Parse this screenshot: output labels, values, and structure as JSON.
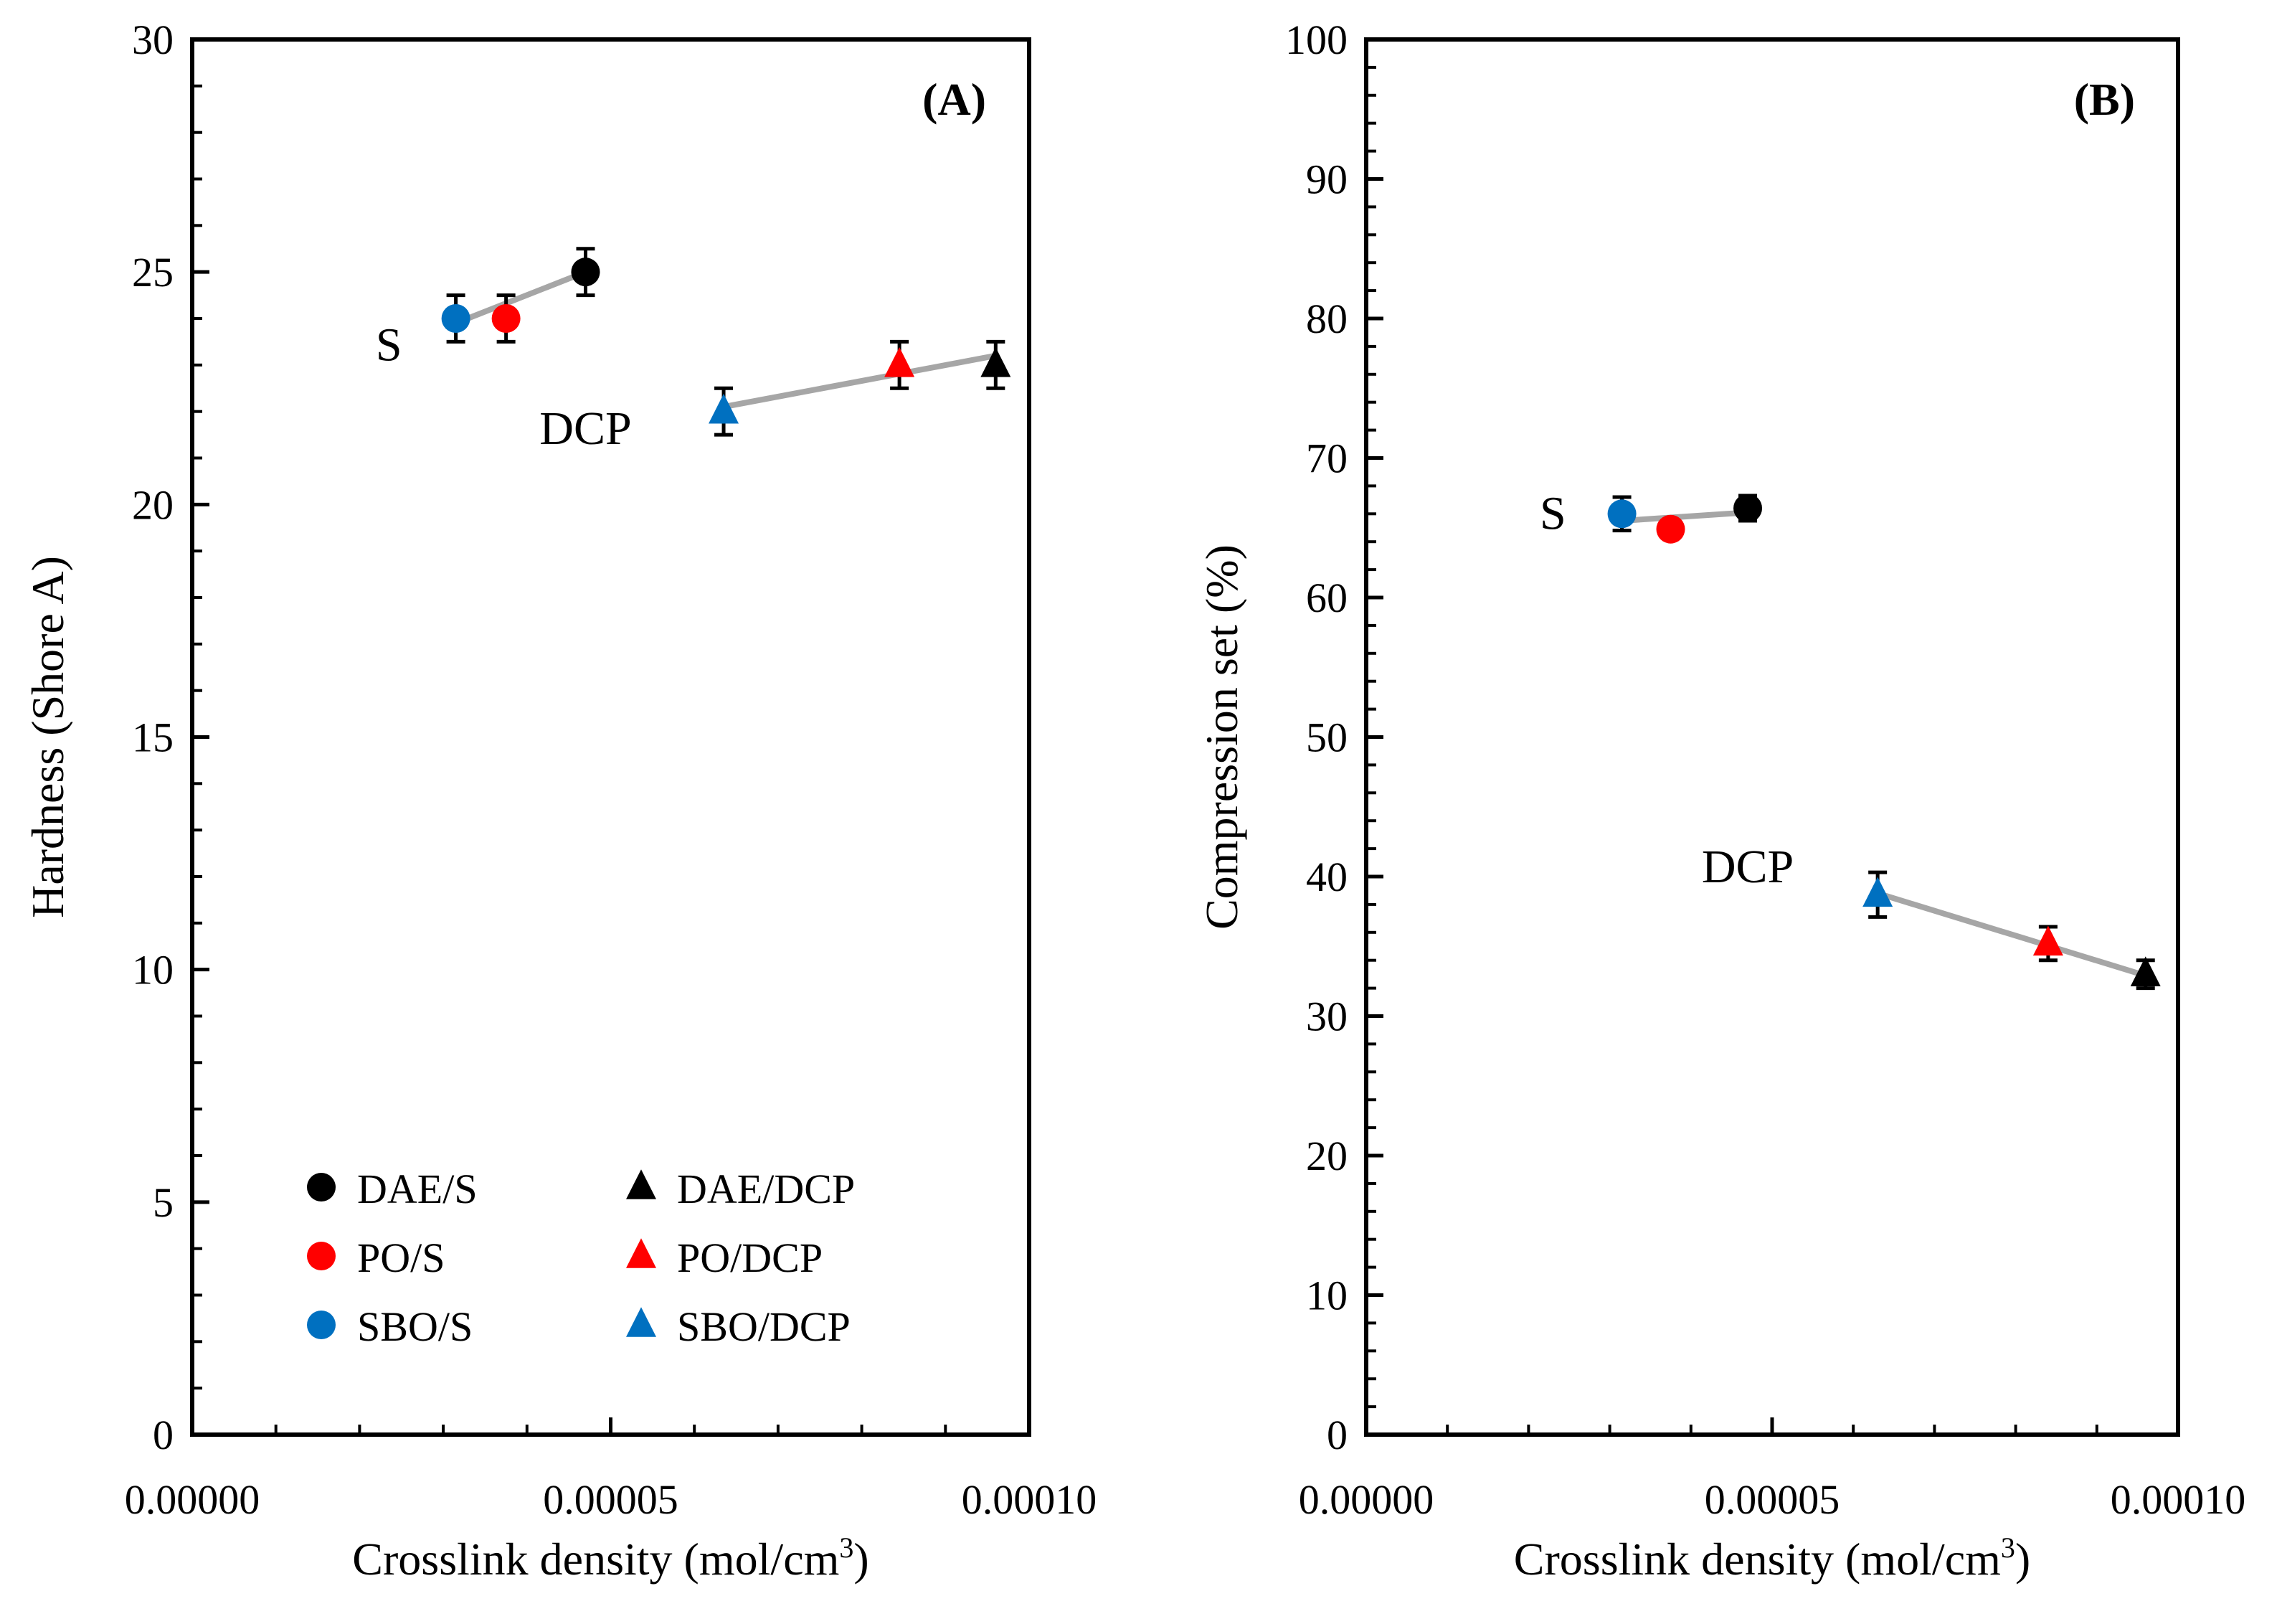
{
  "chart_data": [
    {
      "type": "scatter",
      "panel_label": "(A)",
      "xlabel": "Crosslink density (mol/cm",
      "xlabel_superscript": "3",
      "xlabel_suffix": ")",
      "ylabel": "Hardness (Shore A)",
      "xlim": [
        0,
        0.0001
      ],
      "ylim": [
        0,
        30
      ],
      "x_ticks": [
        "0.00000",
        "0.00005",
        "0.00010"
      ],
      "x_tick_values": [
        0,
        5e-05,
        0.0001
      ],
      "y_ticks": [
        "0",
        "5",
        "10",
        "15",
        "20",
        "25",
        "30"
      ],
      "y_tick_values": [
        0,
        5,
        10,
        15,
        20,
        25,
        30
      ],
      "grid": false,
      "legend_position": "bottom-left",
      "series": [
        {
          "name": "DAE/S",
          "marker": "circle",
          "color": "#000000",
          "x": 4.7e-05,
          "y": 25.0,
          "error": 0.5
        },
        {
          "name": "PO/S",
          "marker": "circle",
          "color": "#ff0000",
          "x": 3.75e-05,
          "y": 24.0,
          "error": 0.5
        },
        {
          "name": "SBO/S",
          "marker": "circle",
          "color": "#0070c0",
          "x": 3.15e-05,
          "y": 24.0,
          "error": 0.5
        },
        {
          "name": "DAE/DCP",
          "marker": "triangle",
          "color": "#000000",
          "x": 9.6e-05,
          "y": 23.0,
          "error": 0.5
        },
        {
          "name": "PO/DCP",
          "marker": "triangle",
          "color": "#ff0000",
          "x": 8.45e-05,
          "y": 23.0,
          "error": 0.5
        },
        {
          "name": "SBO/DCP",
          "marker": "triangle",
          "color": "#0070c0",
          "x": 6.35e-05,
          "y": 22.0,
          "error": 0.5
        }
      ],
      "trendlines": [
        {
          "group": "S",
          "color": "#a6a6a6",
          "x": [
            3.15e-05,
            4.7e-05
          ],
          "y": [
            23.9,
            25.0
          ]
        },
        {
          "group": "DCP",
          "color": "#a6a6a6",
          "x": [
            6.35e-05,
            9.6e-05
          ],
          "y": [
            22.1,
            23.2
          ]
        }
      ],
      "annotations": [
        {
          "text": "S",
          "x": 2.35e-05,
          "y": 23.1
        },
        {
          "text": "DCP",
          "x": 4.7e-05,
          "y": 21.3
        }
      ]
    },
    {
      "type": "scatter",
      "panel_label": "(B)",
      "xlabel": "Crosslink density (mol/cm",
      "xlabel_superscript": "3",
      "xlabel_suffix": ")",
      "ylabel": "Compression set (%)",
      "xlim": [
        0,
        0.0001
      ],
      "ylim": [
        0,
        100
      ],
      "x_ticks": [
        "0.00000",
        "0.00005",
        "0.00010"
      ],
      "x_tick_values": [
        0,
        5e-05,
        0.0001
      ],
      "y_ticks": [
        "0",
        "10",
        "20",
        "30",
        "40",
        "50",
        "60",
        "70",
        "80",
        "90",
        "100"
      ],
      "y_tick_values": [
        0,
        10,
        20,
        30,
        40,
        50,
        60,
        70,
        80,
        90,
        100
      ],
      "grid": false,
      "series": [
        {
          "name": "DAE/S",
          "marker": "circle",
          "color": "#000000",
          "x": 4.7e-05,
          "y": 66.4,
          "error": 0.9
        },
        {
          "name": "PO/S",
          "marker": "circle",
          "color": "#ff0000",
          "x": 3.75e-05,
          "y": 64.9,
          "error": 0.0
        },
        {
          "name": "SBO/S",
          "marker": "circle",
          "color": "#0070c0",
          "x": 3.15e-05,
          "y": 66.0,
          "error": 1.2
        },
        {
          "name": "DAE/DCP",
          "marker": "triangle",
          "color": "#000000",
          "x": 9.6e-05,
          "y": 33.0,
          "error": 1.0
        },
        {
          "name": "PO/DCP",
          "marker": "triangle",
          "color": "#ff0000",
          "x": 8.4e-05,
          "y": 35.2,
          "error": 1.2
        },
        {
          "name": "SBO/DCP",
          "marker": "triangle",
          "color": "#0070c0",
          "x": 6.3e-05,
          "y": 38.7,
          "error": 1.6
        }
      ],
      "trendlines": [
        {
          "group": "S",
          "color": "#a6a6a6",
          "x": [
            3.15e-05,
            4.7e-05
          ],
          "y": [
            65.5,
            66.1
          ]
        },
        {
          "group": "DCP",
          "color": "#a6a6a6",
          "x": [
            6.3e-05,
            9.6e-05
          ],
          "y": [
            38.8,
            32.9
          ]
        }
      ],
      "annotations": [
        {
          "text": "S",
          "x": 2.3e-05,
          "y": 64.9
        },
        {
          "text": "DCP",
          "x": 4.7e-05,
          "y": 39.6
        }
      ]
    }
  ]
}
